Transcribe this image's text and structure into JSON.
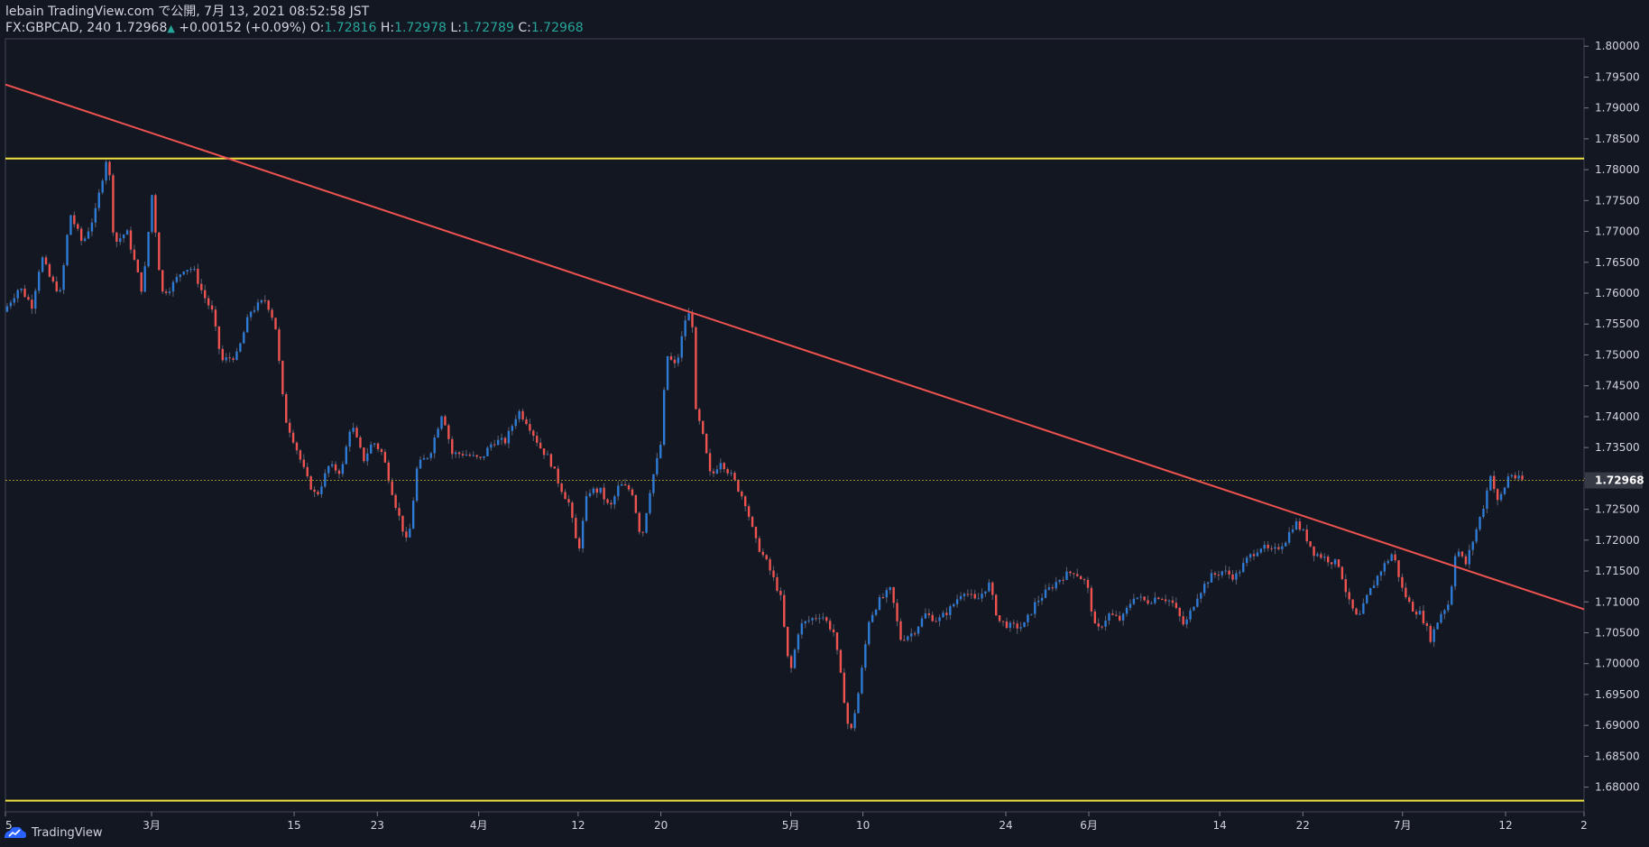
{
  "header": {
    "published": "lebain TradingView.com で公開, 7月 13, 2021 08:52:58 JST",
    "symbol": "FX:GBPCAD, 240",
    "last": "1.72968",
    "change": "+0.00152 (+0.09%)",
    "o_label": "O:",
    "o_val": "1.72816",
    "h_label": "H:",
    "h_val": "1.72978",
    "l_label": "L:",
    "l_val": "1.72789",
    "c_label": "C:",
    "c_val": "1.72968"
  },
  "footer": {
    "brand": "TradingView"
  },
  "colors": {
    "background": "#131722",
    "up": "#2e7bd6",
    "down": "#ef5350",
    "trendline": "#ef5350",
    "hline": "#f0e040",
    "price_line": "#9c8c2a",
    "axis_text": "#d1d4dc"
  },
  "chart_data": {
    "type": "candlestick",
    "ylim": [
      1.676,
      1.8012
    ],
    "yticks": [
      1.68,
      1.685,
      1.69,
      1.695,
      1.7,
      1.705,
      1.71,
      1.715,
      1.72,
      1.725,
      1.73,
      1.735,
      1.74,
      1.745,
      1.75,
      1.755,
      1.76,
      1.765,
      1.77,
      1.775,
      1.78,
      1.785,
      1.79,
      1.795,
      1.8
    ],
    "ytick_labels": [
      "1.68000",
      "1.68500",
      "1.69000",
      "1.69500",
      "1.70000",
      "1.70500",
      "1.71000",
      "1.71500",
      "1.72000",
      "1.72500",
      "1.73000",
      "1.73500",
      "1.74000",
      "1.74500",
      "1.75000",
      "1.75500",
      "1.76000",
      "1.76500",
      "1.77000",
      "1.77500",
      "1.78000",
      "1.78500",
      "1.79000",
      "1.79500",
      "1.80000"
    ],
    "last_price": 1.72968,
    "last_price_label": "1.72968",
    "xticks": [
      {
        "label": "5",
        "x": 0
      },
      {
        "label": "3月",
        "x": 0.0926
      },
      {
        "label": "15",
        "x": 0.1829
      },
      {
        "label": "23",
        "x": 0.2356
      },
      {
        "label": "4月",
        "x": 0.2998
      },
      {
        "label": "12",
        "x": 0.3628
      },
      {
        "label": "20",
        "x": 0.4152
      },
      {
        "label": "5月",
        "x": 0.4975
      },
      {
        "label": "10",
        "x": 0.5432
      },
      {
        "label": "24",
        "x": 0.6337
      },
      {
        "label": "6月",
        "x": 0.6863
      },
      {
        "label": "14",
        "x": 0.7692
      },
      {
        "label": "22",
        "x": 0.8219
      },
      {
        "label": "7月",
        "x": 0.885
      },
      {
        "label": "12",
        "x": 0.9503
      },
      {
        "label": "2",
        "x": 1.0
      }
    ],
    "path_keypoints": [
      [
        0.0,
        1.757
      ],
      [
        0.01,
        1.761
      ],
      [
        0.018,
        1.758
      ],
      [
        0.024,
        1.766
      ],
      [
        0.03,
        1.762
      ],
      [
        0.036,
        1.76
      ],
      [
        0.042,
        1.773
      ],
      [
        0.05,
        1.768
      ],
      [
        0.058,
        1.773
      ],
      [
        0.062,
        1.778
      ],
      [
        0.066,
        1.783
      ],
      [
        0.07,
        1.768
      ],
      [
        0.078,
        1.77
      ],
      [
        0.088,
        1.76
      ],
      [
        0.094,
        1.776
      ],
      [
        0.1,
        1.76
      ],
      [
        0.106,
        1.761
      ],
      [
        0.114,
        1.764
      ],
      [
        0.12,
        1.764
      ],
      [
        0.126,
        1.76
      ],
      [
        0.132,
        1.757
      ],
      [
        0.138,
        1.749
      ],
      [
        0.148,
        1.75
      ],
      [
        0.156,
        1.757
      ],
      [
        0.166,
        1.759
      ],
      [
        0.172,
        1.755
      ],
      [
        0.178,
        1.74
      ],
      [
        0.184,
        1.736
      ],
      [
        0.192,
        1.73
      ],
      [
        0.198,
        1.727
      ],
      [
        0.206,
        1.732
      ],
      [
        0.214,
        1.731
      ],
      [
        0.22,
        1.739
      ],
      [
        0.228,
        1.733
      ],
      [
        0.234,
        1.736
      ],
      [
        0.24,
        1.734
      ],
      [
        0.248,
        1.726
      ],
      [
        0.256,
        1.719
      ],
      [
        0.262,
        1.732
      ],
      [
        0.27,
        1.734
      ],
      [
        0.278,
        1.741
      ],
      [
        0.284,
        1.734
      ],
      [
        0.292,
        1.734
      ],
      [
        0.302,
        1.733
      ],
      [
        0.31,
        1.736
      ],
      [
        0.318,
        1.736
      ],
      [
        0.326,
        1.741
      ],
      [
        0.332,
        1.739
      ],
      [
        0.34,
        1.735
      ],
      [
        0.346,
        1.733
      ],
      [
        0.352,
        1.729
      ],
      [
        0.358,
        1.726
      ],
      [
        0.364,
        1.718
      ],
      [
        0.37,
        1.728
      ],
      [
        0.378,
        1.728
      ],
      [
        0.384,
        1.725
      ],
      [
        0.39,
        1.729
      ],
      [
        0.398,
        1.728
      ],
      [
        0.404,
        1.72
      ],
      [
        0.41,
        1.729
      ],
      [
        0.416,
        1.735
      ],
      [
        0.42,
        1.75
      ],
      [
        0.426,
        1.748
      ],
      [
        0.432,
        1.756
      ],
      [
        0.436,
        1.757
      ],
      [
        0.438,
        1.741
      ],
      [
        0.442,
        1.738
      ],
      [
        0.448,
        1.73
      ],
      [
        0.454,
        1.733
      ],
      [
        0.462,
        1.73
      ],
      [
        0.47,
        1.726
      ],
      [
        0.476,
        1.72
      ],
      [
        0.484,
        1.716
      ],
      [
        0.492,
        1.711
      ],
      [
        0.498,
        1.698
      ],
      [
        0.504,
        1.706
      ],
      [
        0.51,
        1.707
      ],
      [
        0.518,
        1.708
      ],
      [
        0.526,
        1.705
      ],
      [
        0.532,
        1.695
      ],
      [
        0.536,
        1.688
      ],
      [
        0.542,
        1.696
      ],
      [
        0.548,
        1.707
      ],
      [
        0.554,
        1.71
      ],
      [
        0.562,
        1.712
      ],
      [
        0.568,
        1.704
      ],
      [
        0.576,
        1.705
      ],
      [
        0.584,
        1.708
      ],
      [
        0.592,
        1.707
      ],
      [
        0.6,
        1.709
      ],
      [
        0.608,
        1.712
      ],
      [
        0.616,
        1.71
      ],
      [
        0.624,
        1.713
      ],
      [
        0.63,
        1.707
      ],
      [
        0.638,
        1.706
      ],
      [
        0.646,
        1.706
      ],
      [
        0.654,
        1.71
      ],
      [
        0.662,
        1.712
      ],
      [
        0.67,
        1.714
      ],
      [
        0.678,
        1.715
      ],
      [
        0.686,
        1.713
      ],
      [
        0.692,
        1.705
      ],
      [
        0.7,
        1.708
      ],
      [
        0.708,
        1.707
      ],
      [
        0.716,
        1.711
      ],
      [
        0.724,
        1.71
      ],
      [
        0.732,
        1.711
      ],
      [
        0.74,
        1.71
      ],
      [
        0.748,
        1.706
      ],
      [
        0.756,
        1.711
      ],
      [
        0.764,
        1.714
      ],
      [
        0.772,
        1.715
      ],
      [
        0.78,
        1.714
      ],
      [
        0.788,
        1.717
      ],
      [
        0.796,
        1.719
      ],
      [
        0.804,
        1.718
      ],
      [
        0.812,
        1.72
      ],
      [
        0.818,
        1.723
      ],
      [
        0.824,
        1.721
      ],
      [
        0.83,
        1.718
      ],
      [
        0.838,
        1.717
      ],
      [
        0.846,
        1.716
      ],
      [
        0.852,
        1.71
      ],
      [
        0.858,
        1.707
      ],
      [
        0.864,
        1.711
      ],
      [
        0.872,
        1.715
      ],
      [
        0.88,
        1.718
      ],
      [
        0.886,
        1.712
      ],
      [
        0.892,
        1.709
      ],
      [
        0.898,
        1.708
      ],
      [
        0.904,
        1.704
      ],
      [
        0.91,
        1.708
      ],
      [
        0.916,
        1.71
      ],
      [
        0.92,
        1.719
      ],
      [
        0.926,
        1.716
      ],
      [
        0.932,
        1.721
      ],
      [
        0.938,
        1.726
      ],
      [
        0.942,
        1.731
      ],
      [
        0.946,
        1.726
      ],
      [
        0.95,
        1.728
      ],
      [
        0.954,
        1.731
      ],
      [
        0.958,
        1.73
      ],
      [
        0.962,
        1.7297
      ]
    ],
    "trendline": [
      [
        0.0,
        1.7938
      ],
      [
        1.0,
        1.7088
      ]
    ],
    "hlines": [
      1.7818,
      1.6778
    ]
  }
}
